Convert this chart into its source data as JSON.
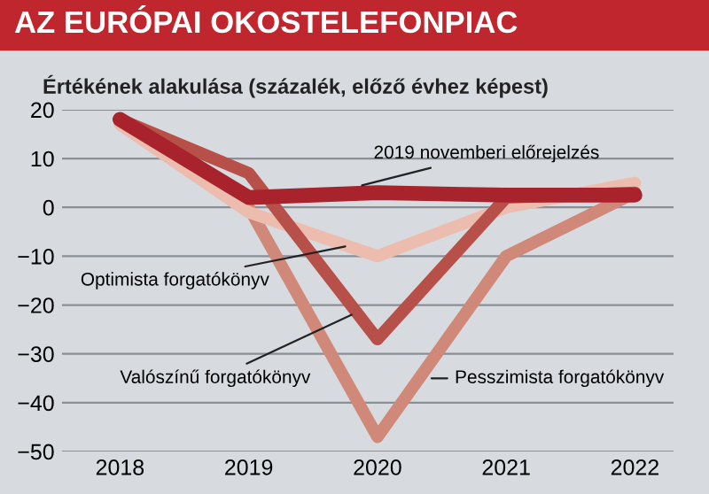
{
  "chart_data": {
    "type": "line",
    "title": "AZ EURÓPAI OKOSTELEFONPIAC",
    "subtitle": "Értékének alakulása (százalék, előző évhez képest)",
    "categories": [
      "2018",
      "2019",
      "2020",
      "2021",
      "2022"
    ],
    "series": [
      {
        "name": "Pesszimista forgatókönyv",
        "color": "#d08878",
        "values": [
          18,
          0,
          -47,
          -10,
          3
        ]
      },
      {
        "name": "Optimista forgatókönyv",
        "color": "#ecbcae",
        "values": [
          17,
          -1,
          -10,
          0,
          5
        ]
      },
      {
        "name": "Valószínű forgatókönyv",
        "color": "#b8504a",
        "values": [
          18,
          7,
          -27,
          2,
          3
        ]
      },
      {
        "name": "2019 novemberi előrejelzés",
        "color": "#a8232b",
        "values": [
          18,
          2,
          3,
          2.5,
          2.5
        ]
      }
    ],
    "ylim": [
      -50,
      20
    ],
    "yticks": [
      {
        "value": -50,
        "label": "−50"
      },
      {
        "value": -40,
        "label": "−40"
      },
      {
        "value": -30,
        "label": "−30"
      },
      {
        "value": -20,
        "label": "−20"
      },
      {
        "value": -10,
        "label": "−10"
      },
      0,
      10,
      20
    ],
    "grid": "y",
    "marker": "none",
    "line_style": "solid",
    "legend": false
  }
}
